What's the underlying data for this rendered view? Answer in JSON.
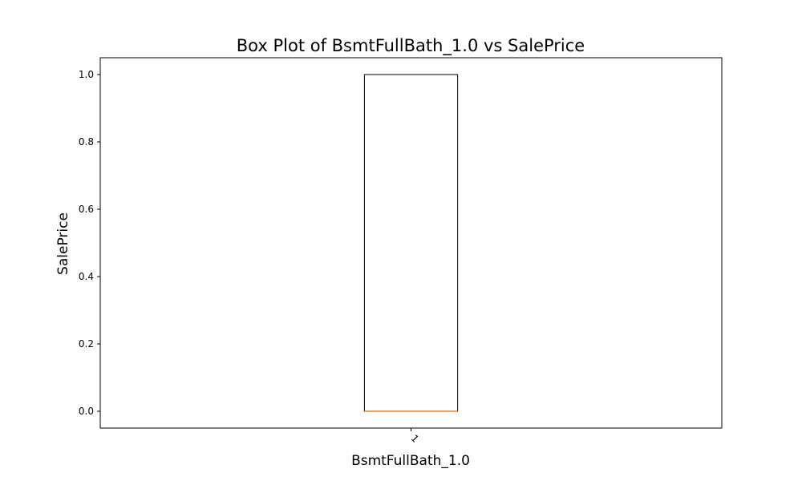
{
  "chart_data": {
    "type": "box",
    "title": "Box Plot of BsmtFullBath_1.0 vs SalePrice",
    "xlabel": "BsmtFullBath_1.0",
    "ylabel": "SalePrice",
    "categories": [
      "1"
    ],
    "ylim": [
      -0.05,
      1.05
    ],
    "yticks": [
      0.0,
      0.2,
      0.4,
      0.6,
      0.8,
      1.0
    ],
    "ytick_labels": [
      "0.0",
      "0.2",
      "0.4",
      "0.6",
      "0.8",
      "1.0"
    ],
    "grid": false,
    "boxes": [
      {
        "category": "1",
        "min": 0.0,
        "q1": 0.0,
        "median": 0.0,
        "q3": 1.0,
        "max": 1.0
      }
    ],
    "colors": {
      "box": "#000000",
      "median": "#e0823a",
      "axes": "#000000",
      "background": "#ffffff"
    }
  }
}
